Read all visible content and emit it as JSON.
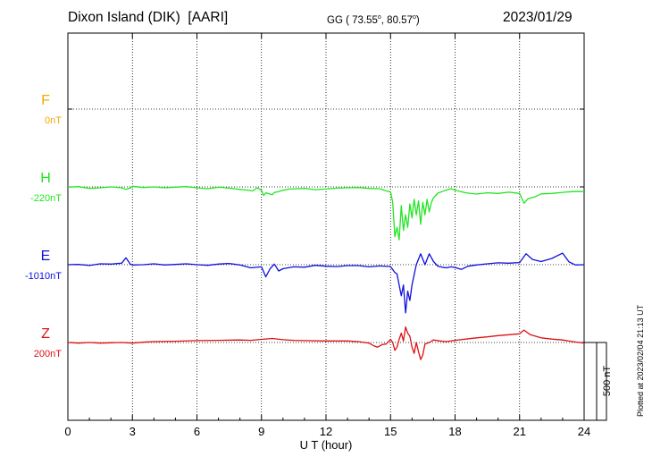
{
  "header": {
    "station": "Dixon Island (DIK)",
    "institute": "[AARI]",
    "coords_prefix": "GG ( 73.55",
    "coords_mid": ",  80.57",
    "coords_suffix": ")",
    "degree_mark": "o",
    "date": "2023/01/29"
  },
  "footer": {
    "plotted_note": "Plotted at 2023/02/04 21:13 UT"
  },
  "chart_data": {
    "type": "line",
    "title": "Dixon Island (DIK)  [AARI]",
    "xlabel": "U T (hour)",
    "xlim": [
      0,
      24
    ],
    "x_ticks": [
      "0",
      "3",
      "6",
      "9",
      "12",
      "15",
      "18",
      "21",
      "24"
    ],
    "scale_bar": "500 nT",
    "grid": "dotted vertical every 3 h",
    "series": [
      {
        "name": "F",
        "baseline_label": "0nT",
        "color": "#f5a800",
        "baseline_nT": 0,
        "x": [],
        "values": []
      },
      {
        "name": "H",
        "baseline_label": "-220nT",
        "color": "#22e622",
        "baseline_nT": -220,
        "x": [
          0,
          0.5,
          1,
          1.5,
          2,
          2.5,
          2.7,
          2.9,
          3,
          3.5,
          4,
          4.5,
          5,
          5.5,
          6,
          6.5,
          7,
          7.5,
          8,
          8.3,
          8.6,
          8.8,
          9,
          9.1,
          9.2,
          9.3,
          9.5,
          9.6,
          9.8,
          10,
          10.3,
          10.6,
          11,
          11.5,
          12,
          12.5,
          13,
          13.5,
          14,
          14.5,
          14.8,
          15,
          15.1,
          15.2,
          15.3,
          15.4,
          15.5,
          15.6,
          15.7,
          15.8,
          15.9,
          16.0,
          16.1,
          16.2,
          16.3,
          16.4,
          16.5,
          16.6,
          16.7,
          16.8,
          16.9,
          17.0,
          17.2,
          17.4,
          17.6,
          17.8,
          18.0,
          18.2,
          18.5,
          19,
          19.5,
          20,
          20.5,
          21,
          21.2,
          21.4,
          21.7,
          22,
          22.5,
          23,
          23.5,
          24
        ],
        "values": [
          -222,
          -218,
          -230,
          -226,
          -220,
          -226,
          -236,
          -228,
          -216,
          -224,
          -220,
          -226,
          -222,
          -218,
          -226,
          -232,
          -222,
          -228,
          -236,
          -240,
          -246,
          -226,
          -242,
          -275,
          -258,
          -262,
          -270,
          -256,
          -250,
          -242,
          -234,
          -232,
          -230,
          -238,
          -234,
          -228,
          -226,
          -224,
          -230,
          -232,
          -246,
          -252,
          -320,
          -540,
          -480,
          -560,
          -340,
          -500,
          -400,
          -480,
          -330,
          -420,
          -300,
          -400,
          -310,
          -460,
          -320,
          -400,
          -300,
          -380,
          -320,
          -290,
          -260,
          -250,
          -240,
          -232,
          -240,
          -248,
          -258,
          -266,
          -258,
          -262,
          -254,
          -262,
          -325,
          -295,
          -285,
          -265,
          -262,
          -255,
          -250,
          -250
        ]
      },
      {
        "name": "E",
        "baseline_label": "-1010nT",
        "color": "#1010dd",
        "baseline_nT": -1010,
        "x": [
          0,
          0.5,
          1,
          1.5,
          2,
          2.5,
          2.7,
          2.9,
          3,
          3.5,
          4,
          4.5,
          5,
          5.5,
          6,
          6.5,
          7,
          7.5,
          8,
          8.5,
          9,
          9.2,
          9.4,
          9.6,
          9.8,
          10,
          10.5,
          11,
          11.5,
          12,
          12.5,
          13,
          13.5,
          14,
          14.5,
          15,
          15.2,
          15.3,
          15.4,
          15.5,
          15.6,
          15.7,
          15.8,
          15.9,
          16.0,
          16.2,
          16.4,
          16.6,
          16.8,
          17.0,
          17.2,
          17.4,
          17.6,
          17.8,
          18,
          18.3,
          18.6,
          19,
          19.5,
          20,
          20.5,
          21,
          21.3,
          21.6,
          22,
          22.5,
          23,
          23.3,
          23.6,
          24
        ],
        "values": [
          -1010,
          -1008,
          -1015,
          -1004,
          -1006,
          -1000,
          -966,
          -1006,
          -1012,
          -1010,
          -1004,
          -1012,
          -1008,
          -1004,
          -1010,
          -1014,
          -1006,
          -1002,
          -1012,
          -1030,
          -1024,
          -1088,
          -1036,
          -1006,
          -1050,
          -1036,
          -1024,
          -1026,
          -1014,
          -1020,
          -1022,
          -1016,
          -1016,
          -1024,
          -1018,
          -1022,
          -1060,
          -1070,
          -1140,
          -1210,
          -1140,
          -1320,
          -1180,
          -1240,
          -1140,
          -1010,
          -940,
          -1010,
          -940,
          -990,
          -1020,
          -1026,
          -1030,
          -1024,
          -1028,
          -1040,
          -1020,
          -1012,
          -1004,
          -998,
          -1000,
          -996,
          -940,
          -976,
          -990,
          -970,
          -936,
          -992,
          -1012,
          -1010
        ]
      },
      {
        "name": "Z",
        "baseline_label": "200nT",
        "color": "#dd1111",
        "baseline_nT": 200,
        "x": [
          0,
          0.5,
          1,
          1.5,
          2,
          2.5,
          3,
          3.5,
          4,
          5,
          6,
          7,
          8,
          8.5,
          9,
          9.5,
          10,
          10.5,
          11,
          12,
          13,
          13.5,
          14,
          14.2,
          14.4,
          14.6,
          14.8,
          15,
          15.1,
          15.2,
          15.3,
          15.4,
          15.5,
          15.6,
          15.7,
          15.8,
          15.9,
          16.0,
          16.1,
          16.2,
          16.3,
          16.4,
          16.5,
          16.6,
          16.8,
          17,
          17.3,
          17.6,
          18,
          18.5,
          19,
          19.5,
          20,
          20.5,
          21,
          21.2,
          21.5,
          22,
          22.5,
          23,
          23.5,
          24
        ],
        "values": [
          200,
          196,
          200,
          196,
          198,
          200,
          196,
          202,
          206,
          208,
          212,
          214,
          216,
          214,
          220,
          226,
          218,
          214,
          212,
          210,
          210,
          206,
          196,
          180,
          170,
          186,
          190,
          220,
          200,
          150,
          170,
          220,
          260,
          210,
          300,
          260,
          240,
          170,
          130,
          200,
          140,
          90,
          120,
          190,
          200,
          216,
          210,
          206,
          214,
          222,
          230,
          236,
          244,
          250,
          256,
          280,
          250,
          230,
          222,
          216,
          205,
          196
        ]
      }
    ]
  }
}
